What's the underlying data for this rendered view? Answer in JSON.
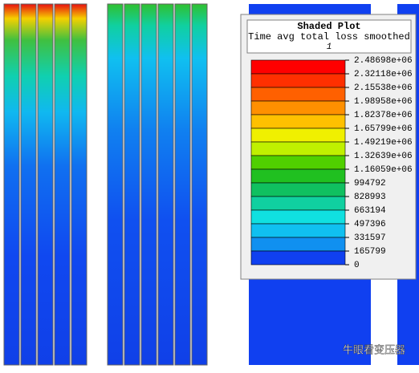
{
  "legend": {
    "title": "Shaded Plot",
    "subtitle": "Time avg total loss smoothed",
    "step": "1",
    "levels": [
      "2.48698e+06",
      "2.32118e+06",
      "2.15538e+06",
      "1.98958e+06",
      "1.82378e+06",
      "1.65799e+06",
      "1.49219e+06",
      "1.32639e+06",
      "1.16059e+06",
      "994792",
      "828993",
      "663194",
      "497396",
      "331597",
      "165799",
      "0"
    ]
  },
  "watermark": "牛眼看变压器"
}
